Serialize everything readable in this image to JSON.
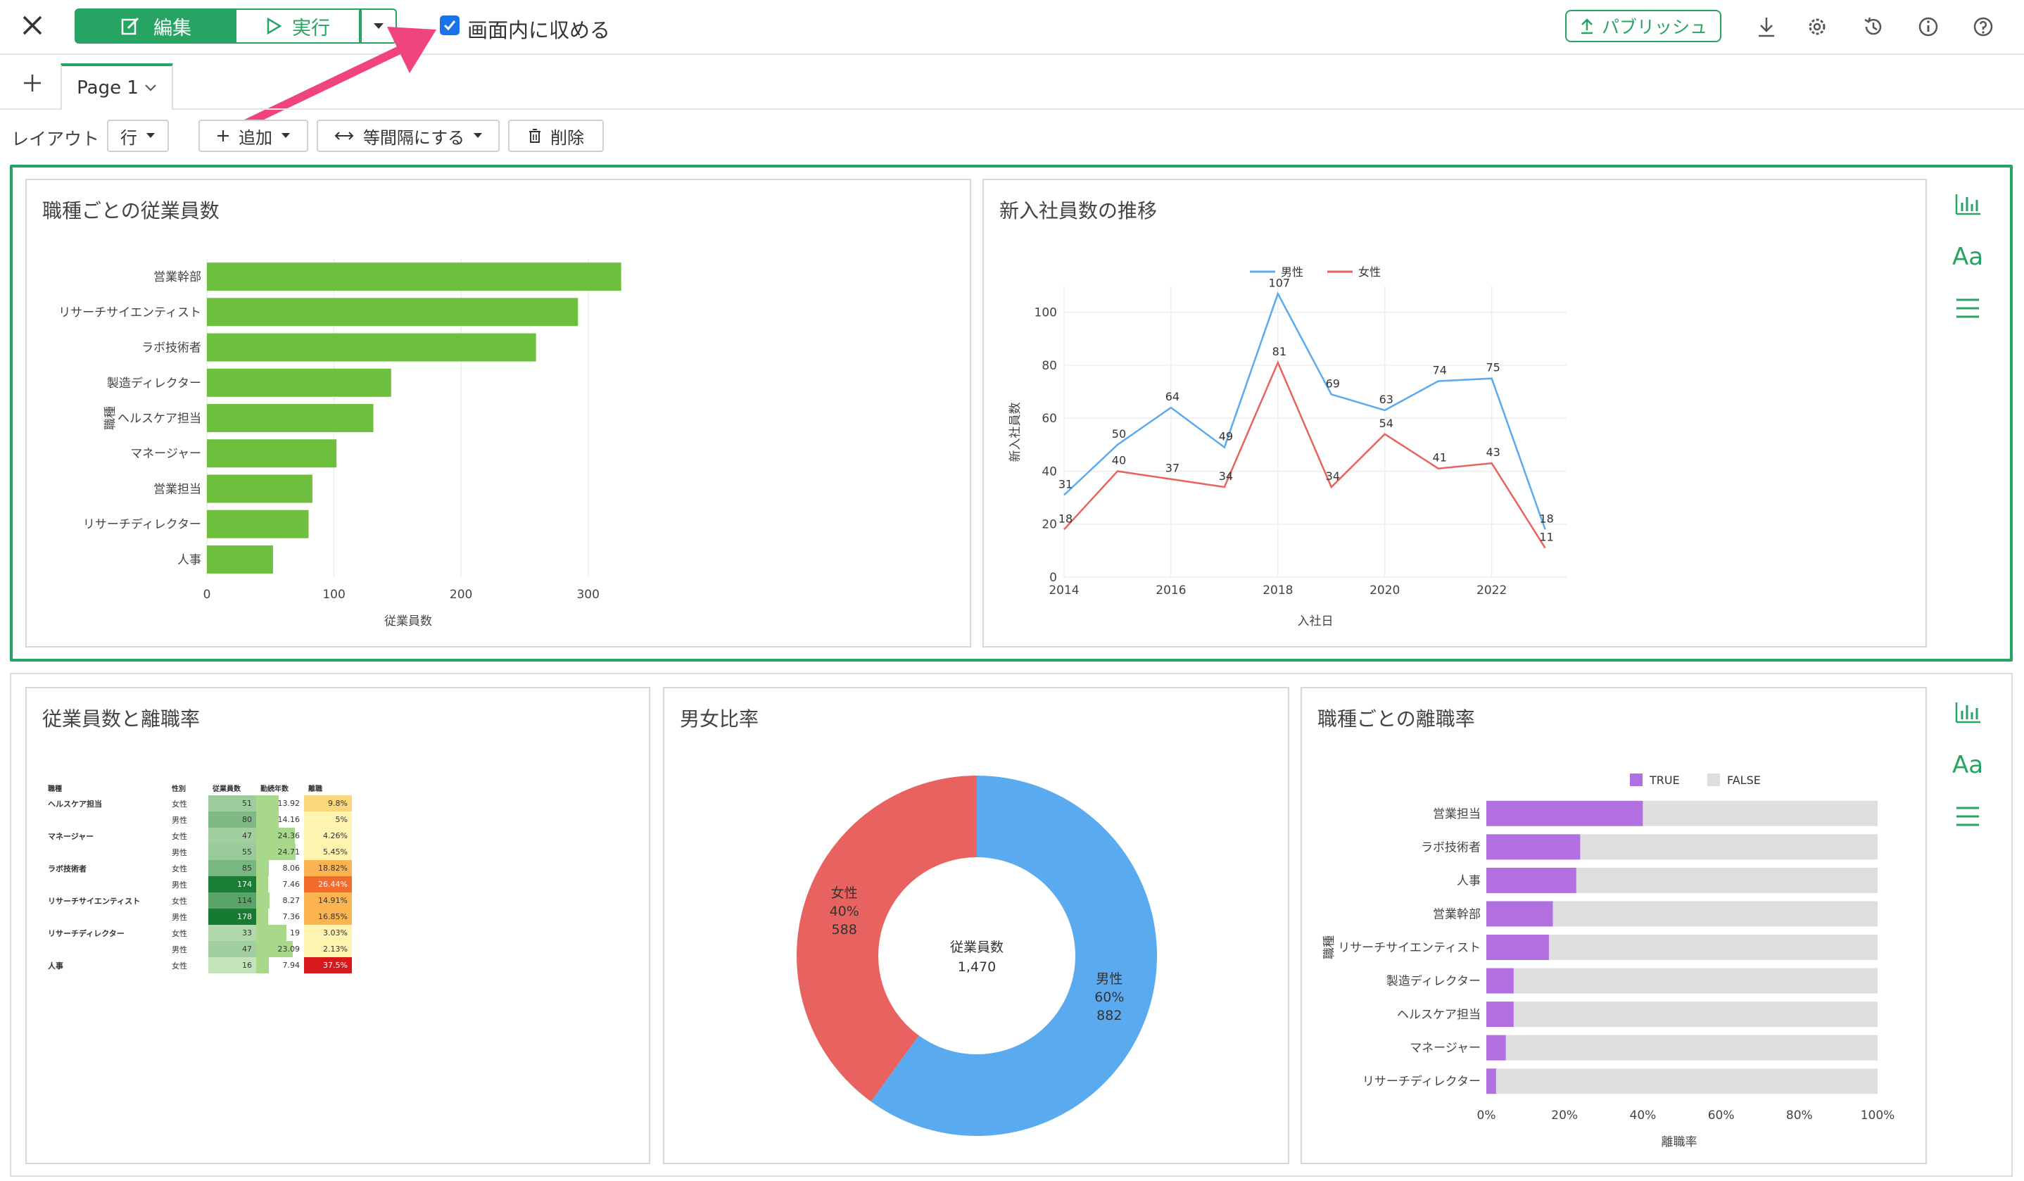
{
  "toolbar": {
    "edit_label": "編集",
    "run_label": "実行",
    "fit_label": "画面内に収める",
    "fit_checked": true,
    "publish_label": "パブリッシュ"
  },
  "tabs": {
    "page_label": "Page 1"
  },
  "layout_bar": {
    "layout_label": "レイアウト",
    "row_select": "行",
    "add_label": "追加",
    "equal_label": "等間隔にする",
    "delete_label": "削除"
  },
  "colors": {
    "accent": "#27a463",
    "bar_green": "#6fbf3f",
    "male": "#5aaaf0",
    "female": "#e8625f",
    "purple": "#b26fe0",
    "grey": "#dedede"
  },
  "panels": {
    "bar": {
      "title": "職種ごとの従業員数"
    },
    "line": {
      "title": "新入社員数の推移"
    },
    "table": {
      "title": "従業員数と離職率"
    },
    "donut": {
      "title": "男女比率",
      "center_label": "従業員数",
      "center_value": "1,470"
    },
    "stacked": {
      "title": "職種ごとの離職率"
    }
  },
  "chart_data": [
    {
      "type": "bar",
      "orientation": "horizontal",
      "categories": [
        "営業幹部",
        "リサーチサイエンティスト",
        "ラボ技術者",
        "製造ディレクター",
        "ヘルスケア担当",
        "マネージャー",
        "営業担当",
        "リサーチディレクター",
        "人事"
      ],
      "values": [
        326,
        292,
        259,
        145,
        131,
        102,
        83,
        80,
        52
      ],
      "xlabel": "従業員数",
      "ylabel": "職種",
      "xticks": [
        "0",
        "100",
        "200",
        "300"
      ],
      "xlim": [
        0,
        350
      ]
    },
    {
      "type": "line",
      "x": [
        2014,
        2015,
        2016,
        2017,
        2018,
        2019,
        2020,
        2021,
        2022,
        2023
      ],
      "series": [
        {
          "name": "男性",
          "values": [
            31,
            50,
            64,
            49,
            107,
            69,
            63,
            74,
            75,
            18
          ]
        },
        {
          "name": "女性",
          "values": [
            18,
            40,
            37,
            34,
            81,
            34,
            54,
            41,
            43,
            11
          ]
        }
      ],
      "xlabel": "入社日",
      "ylabel": "新入社員数",
      "xticks": [
        "2014",
        "2016",
        "2018",
        "2020",
        "2022"
      ],
      "yticks": [
        "0",
        "20",
        "40",
        "60",
        "80",
        "100"
      ],
      "ylim": [
        0,
        110
      ],
      "legend": "top"
    },
    {
      "type": "table",
      "columns": [
        "職種",
        "性別",
        "従業員数",
        "勤続年数",
        "離職"
      ],
      "rows": [
        [
          "ヘルスケア担当",
          "女性",
          "51",
          "13.92",
          "9.8%"
        ],
        [
          "",
          "男性",
          "80",
          "14.16",
          "5%"
        ],
        [
          "マネージャー",
          "女性",
          "47",
          "24.36",
          "4.26%"
        ],
        [
          "",
          "男性",
          "55",
          "24.71",
          "5.45%"
        ],
        [
          "ラボ技術者",
          "女性",
          "85",
          "8.06",
          "18.82%"
        ],
        [
          "",
          "男性",
          "174",
          "7.46",
          "26.44%"
        ],
        [
          "リサーチサイエンティスト",
          "女性",
          "114",
          "8.27",
          "14.91%"
        ],
        [
          "",
          "男性",
          "178",
          "7.36",
          "16.85%"
        ],
        [
          "リサーチディレクター",
          "女性",
          "33",
          "19",
          "3.03%"
        ],
        [
          "",
          "男性",
          "47",
          "23.09",
          "2.13%"
        ],
        [
          "人事",
          "女性",
          "16",
          "7.94",
          "37.5%"
        ]
      ],
      "employees_max": 178,
      "tenure_max": 24.71,
      "rate_max": 37.5
    },
    {
      "type": "pie",
      "donut": true,
      "slices": [
        {
          "label": "男性",
          "percent": "60%",
          "value": 882
        },
        {
          "label": "女性",
          "percent": "40%",
          "value": 588
        }
      ]
    },
    {
      "type": "bar",
      "orientation": "horizontal",
      "stacked": true,
      "categories": [
        "営業担当",
        "ラボ技術者",
        "人事",
        "営業幹部",
        "リサーチサイエンティスト",
        "製造ディレクター",
        "ヘルスケア担当",
        "マネージャー",
        "リサーチディレクター"
      ],
      "series": [
        {
          "name": "TRUE",
          "values": [
            40,
            24,
            23,
            17,
            16,
            7,
            7,
            5,
            2.5
          ]
        },
        {
          "name": "FALSE",
          "values": [
            60,
            76,
            77,
            83,
            84,
            93,
            93,
            95,
            97.5
          ]
        }
      ],
      "xlabel": "離職率",
      "ylabel": "職種",
      "xticks": [
        "0%",
        "20%",
        "40%",
        "60%",
        "80%",
        "100%"
      ],
      "legend": "top"
    }
  ]
}
